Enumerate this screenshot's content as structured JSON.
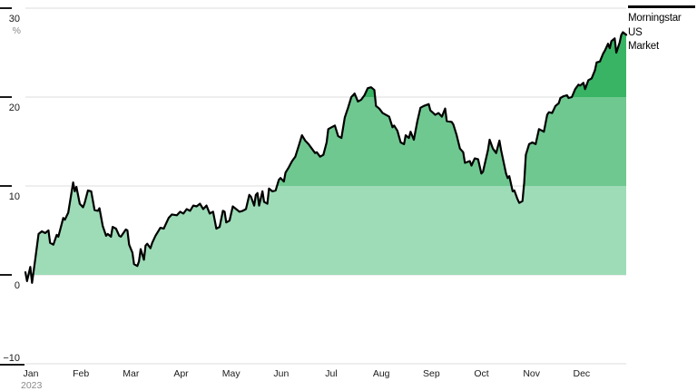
{
  "chart_data": {
    "type": "area",
    "title": "",
    "unit_label": "%",
    "year_label": "2023",
    "legend_position": "top-right",
    "grid": "horizontal-only",
    "x_tick_labels": [
      "Jan",
      "Feb",
      "Mar",
      "Apr",
      "May",
      "Jun",
      "Jul",
      "Aug",
      "Sep",
      "Oct",
      "Nov",
      "Dec"
    ],
    "y_ticks": [
      30,
      20,
      10,
      0,
      -10
    ],
    "y_tick_labels": [
      "30",
      "20",
      "10",
      "0",
      "−10"
    ],
    "ylim": [
      -10,
      30
    ],
    "xlim_days": [
      0,
      365
    ],
    "gridline_color": "#dcdcdc",
    "axis_text_color": "#1a1a1a",
    "muted_text_color": "#8a8a8a",
    "tick_mark_color": "#1a1a1a",
    "band_fills": [
      {
        "from": 0,
        "to": 10,
        "color": "#9edcb8"
      },
      {
        "from": 10,
        "to": 20,
        "color": "#6fc890"
      },
      {
        "from": 20,
        "to": 30,
        "color": "#38b464"
      }
    ],
    "series": [
      {
        "name": "Morningstar US Market",
        "legend_lines": [
          "Morningstar",
          "US",
          "Market"
        ],
        "color": "#000000",
        "value_unit": "% return YTD",
        "points_day_value": [
          [
            0,
            0.3
          ],
          [
            1,
            -0.7
          ],
          [
            3,
            0.9
          ],
          [
            4,
            -0.9
          ],
          [
            6,
            1.8
          ],
          [
            8,
            4.6
          ],
          [
            10,
            4.9
          ],
          [
            12,
            4.7
          ],
          [
            14,
            5.0
          ],
          [
            15,
            3.6
          ],
          [
            17,
            3.4
          ],
          [
            19,
            4.5
          ],
          [
            20,
            4.3
          ],
          [
            23,
            6.4
          ],
          [
            24,
            6.2
          ],
          [
            26,
            7.0
          ],
          [
            29,
            10.4
          ],
          [
            30,
            9.4
          ],
          [
            31,
            9.9
          ],
          [
            33,
            8.0
          ],
          [
            35,
            7.6
          ],
          [
            36,
            8.1
          ],
          [
            38,
            9.5
          ],
          [
            40,
            9.4
          ],
          [
            42,
            7.3
          ],
          [
            44,
            7.2
          ],
          [
            45,
            7.5
          ],
          [
            47,
            5.5
          ],
          [
            49,
            4.4
          ],
          [
            50,
            4.6
          ],
          [
            52,
            4.3
          ],
          [
            53,
            5.4
          ],
          [
            55,
            5.2
          ],
          [
            57,
            4.4
          ],
          [
            58,
            4.3
          ],
          [
            61,
            5.1
          ],
          [
            62,
            5.0
          ],
          [
            63,
            3.4
          ],
          [
            65,
            2.5
          ],
          [
            66,
            1.2
          ],
          [
            68,
            1.0
          ],
          [
            69,
            1.5
          ],
          [
            70,
            2.9
          ],
          [
            72,
            1.7
          ],
          [
            73,
            3.3
          ],
          [
            74,
            3.5
          ],
          [
            76,
            3.0
          ],
          [
            77,
            3.6
          ],
          [
            79,
            4.4
          ],
          [
            82,
            5.3
          ],
          [
            84,
            5.2
          ],
          [
            87,
            6.4
          ],
          [
            89,
            6.8
          ],
          [
            92,
            6.7
          ],
          [
            94,
            7.1
          ],
          [
            96,
            6.9
          ],
          [
            98,
            7.4
          ],
          [
            100,
            7.2
          ],
          [
            102,
            7.8
          ],
          [
            104,
            7.7
          ],
          [
            106,
            8.0
          ],
          [
            108,
            7.4
          ],
          [
            110,
            7.8
          ],
          [
            112,
            6.9
          ],
          [
            114,
            7.1
          ],
          [
            116,
            5.2
          ],
          [
            118,
            5.4
          ],
          [
            120,
            7.2
          ],
          [
            121,
            7.1
          ],
          [
            122,
            5.9
          ],
          [
            124,
            6.1
          ],
          [
            126,
            7.7
          ],
          [
            128,
            7.4
          ],
          [
            130,
            7.1
          ],
          [
            132,
            7.2
          ],
          [
            134,
            7.4
          ],
          [
            136,
            9.0
          ],
          [
            137,
            8.8
          ],
          [
            139,
            7.8
          ],
          [
            140,
            9.0
          ],
          [
            141,
            9.2
          ],
          [
            142,
            7.8
          ],
          [
            144,
            9.4
          ],
          [
            145,
            8.2
          ],
          [
            147,
            8.0
          ],
          [
            148,
            9.7
          ],
          [
            150,
            9.4
          ],
          [
            152,
            9.5
          ],
          [
            154,
            10.7
          ],
          [
            155,
            10.9
          ],
          [
            157,
            10.5
          ],
          [
            158,
            11.5
          ],
          [
            160,
            12.1
          ],
          [
            162,
            12.8
          ],
          [
            164,
            13.3
          ],
          [
            166,
            14.5
          ],
          [
            168,
            15.7
          ],
          [
            170,
            15.1
          ],
          [
            172,
            14.7
          ],
          [
            174,
            14.2
          ],
          [
            176,
            13.7
          ],
          [
            177,
            13.8
          ],
          [
            179,
            13.3
          ],
          [
            181,
            13.5
          ],
          [
            183,
            14.9
          ],
          [
            184,
            16.4
          ],
          [
            186,
            16.6
          ],
          [
            188,
            16.8
          ],
          [
            190,
            15.6
          ],
          [
            192,
            15.4
          ],
          [
            194,
            17.7
          ],
          [
            196,
            18.8
          ],
          [
            198,
            20.0
          ],
          [
            200,
            20.4
          ],
          [
            202,
            19.5
          ],
          [
            204,
            19.7
          ],
          [
            206,
            20.2
          ],
          [
            208,
            21.0
          ],
          [
            210,
            21.1
          ],
          [
            212,
            20.8
          ],
          [
            213,
            19.0
          ],
          [
            215,
            18.7
          ],
          [
            217,
            18.2
          ],
          [
            219,
            18.0
          ],
          [
            221,
            17.8
          ],
          [
            223,
            16.6
          ],
          [
            224,
            16.8
          ],
          [
            226,
            16.2
          ],
          [
            228,
            14.9
          ],
          [
            230,
            14.7
          ],
          [
            231,
            15.7
          ],
          [
            233,
            15.4
          ],
          [
            234,
            16.1
          ],
          [
            236,
            15.2
          ],
          [
            238,
            17.2
          ],
          [
            240,
            18.8
          ],
          [
            242,
            19.0
          ],
          [
            245,
            19.2
          ],
          [
            246,
            18.5
          ],
          [
            249,
            18.0
          ],
          [
            251,
            18.2
          ],
          [
            253,
            17.8
          ],
          [
            255,
            18.7
          ],
          [
            256,
            17.3
          ],
          [
            259,
            17.2
          ],
          [
            260,
            16.9
          ],
          [
            262,
            15.7
          ],
          [
            264,
            14.2
          ],
          [
            266,
            13.8
          ],
          [
            267,
            12.6
          ],
          [
            270,
            12.8
          ],
          [
            271,
            12.3
          ],
          [
            273,
            13.1
          ],
          [
            275,
            13.0
          ],
          [
            277,
            11.4
          ],
          [
            278,
            11.6
          ],
          [
            281,
            14.0
          ],
          [
            282,
            15.2
          ],
          [
            284,
            14.2
          ],
          [
            286,
            13.7
          ],
          [
            288,
            15.1
          ],
          [
            289,
            14.0
          ],
          [
            292,
            11.4
          ],
          [
            293,
            10.9
          ],
          [
            294,
            11.1
          ],
          [
            296,
            9.4
          ],
          [
            297,
            9.5
          ],
          [
            299,
            8.5
          ],
          [
            300,
            8.1
          ],
          [
            302,
            8.3
          ],
          [
            303,
            10.4
          ],
          [
            304,
            13.5
          ],
          [
            306,
            14.7
          ],
          [
            308,
            14.9
          ],
          [
            310,
            14.7
          ],
          [
            312,
            16.4
          ],
          [
            314,
            16.2
          ],
          [
            315,
            16.1
          ],
          [
            317,
            18.0
          ],
          [
            318,
            18.3
          ],
          [
            320,
            18.2
          ],
          [
            322,
            19.0
          ],
          [
            324,
            19.3
          ],
          [
            325,
            19.9
          ],
          [
            327,
            20.1
          ],
          [
            329,
            20.2
          ],
          [
            330,
            19.9
          ],
          [
            332,
            20.0
          ],
          [
            334,
            20.9
          ],
          [
            336,
            21.4
          ],
          [
            337,
            21.3
          ],
          [
            339,
            21.6
          ],
          [
            340,
            20.9
          ],
          [
            342,
            21.9
          ],
          [
            344,
            22.1
          ],
          [
            346,
            23.0
          ],
          [
            347,
            23.9
          ],
          [
            349,
            24.0
          ],
          [
            351,
            24.9
          ],
          [
            352,
            25.2
          ],
          [
            354,
            26.0
          ],
          [
            355,
            25.5
          ],
          [
            356,
            26.3
          ],
          [
            358,
            26.6
          ],
          [
            359,
            25.0
          ],
          [
            361,
            26.1
          ],
          [
            362,
            27.0
          ],
          [
            363,
            27.3
          ],
          [
            365,
            27.0
          ]
        ]
      }
    ]
  }
}
